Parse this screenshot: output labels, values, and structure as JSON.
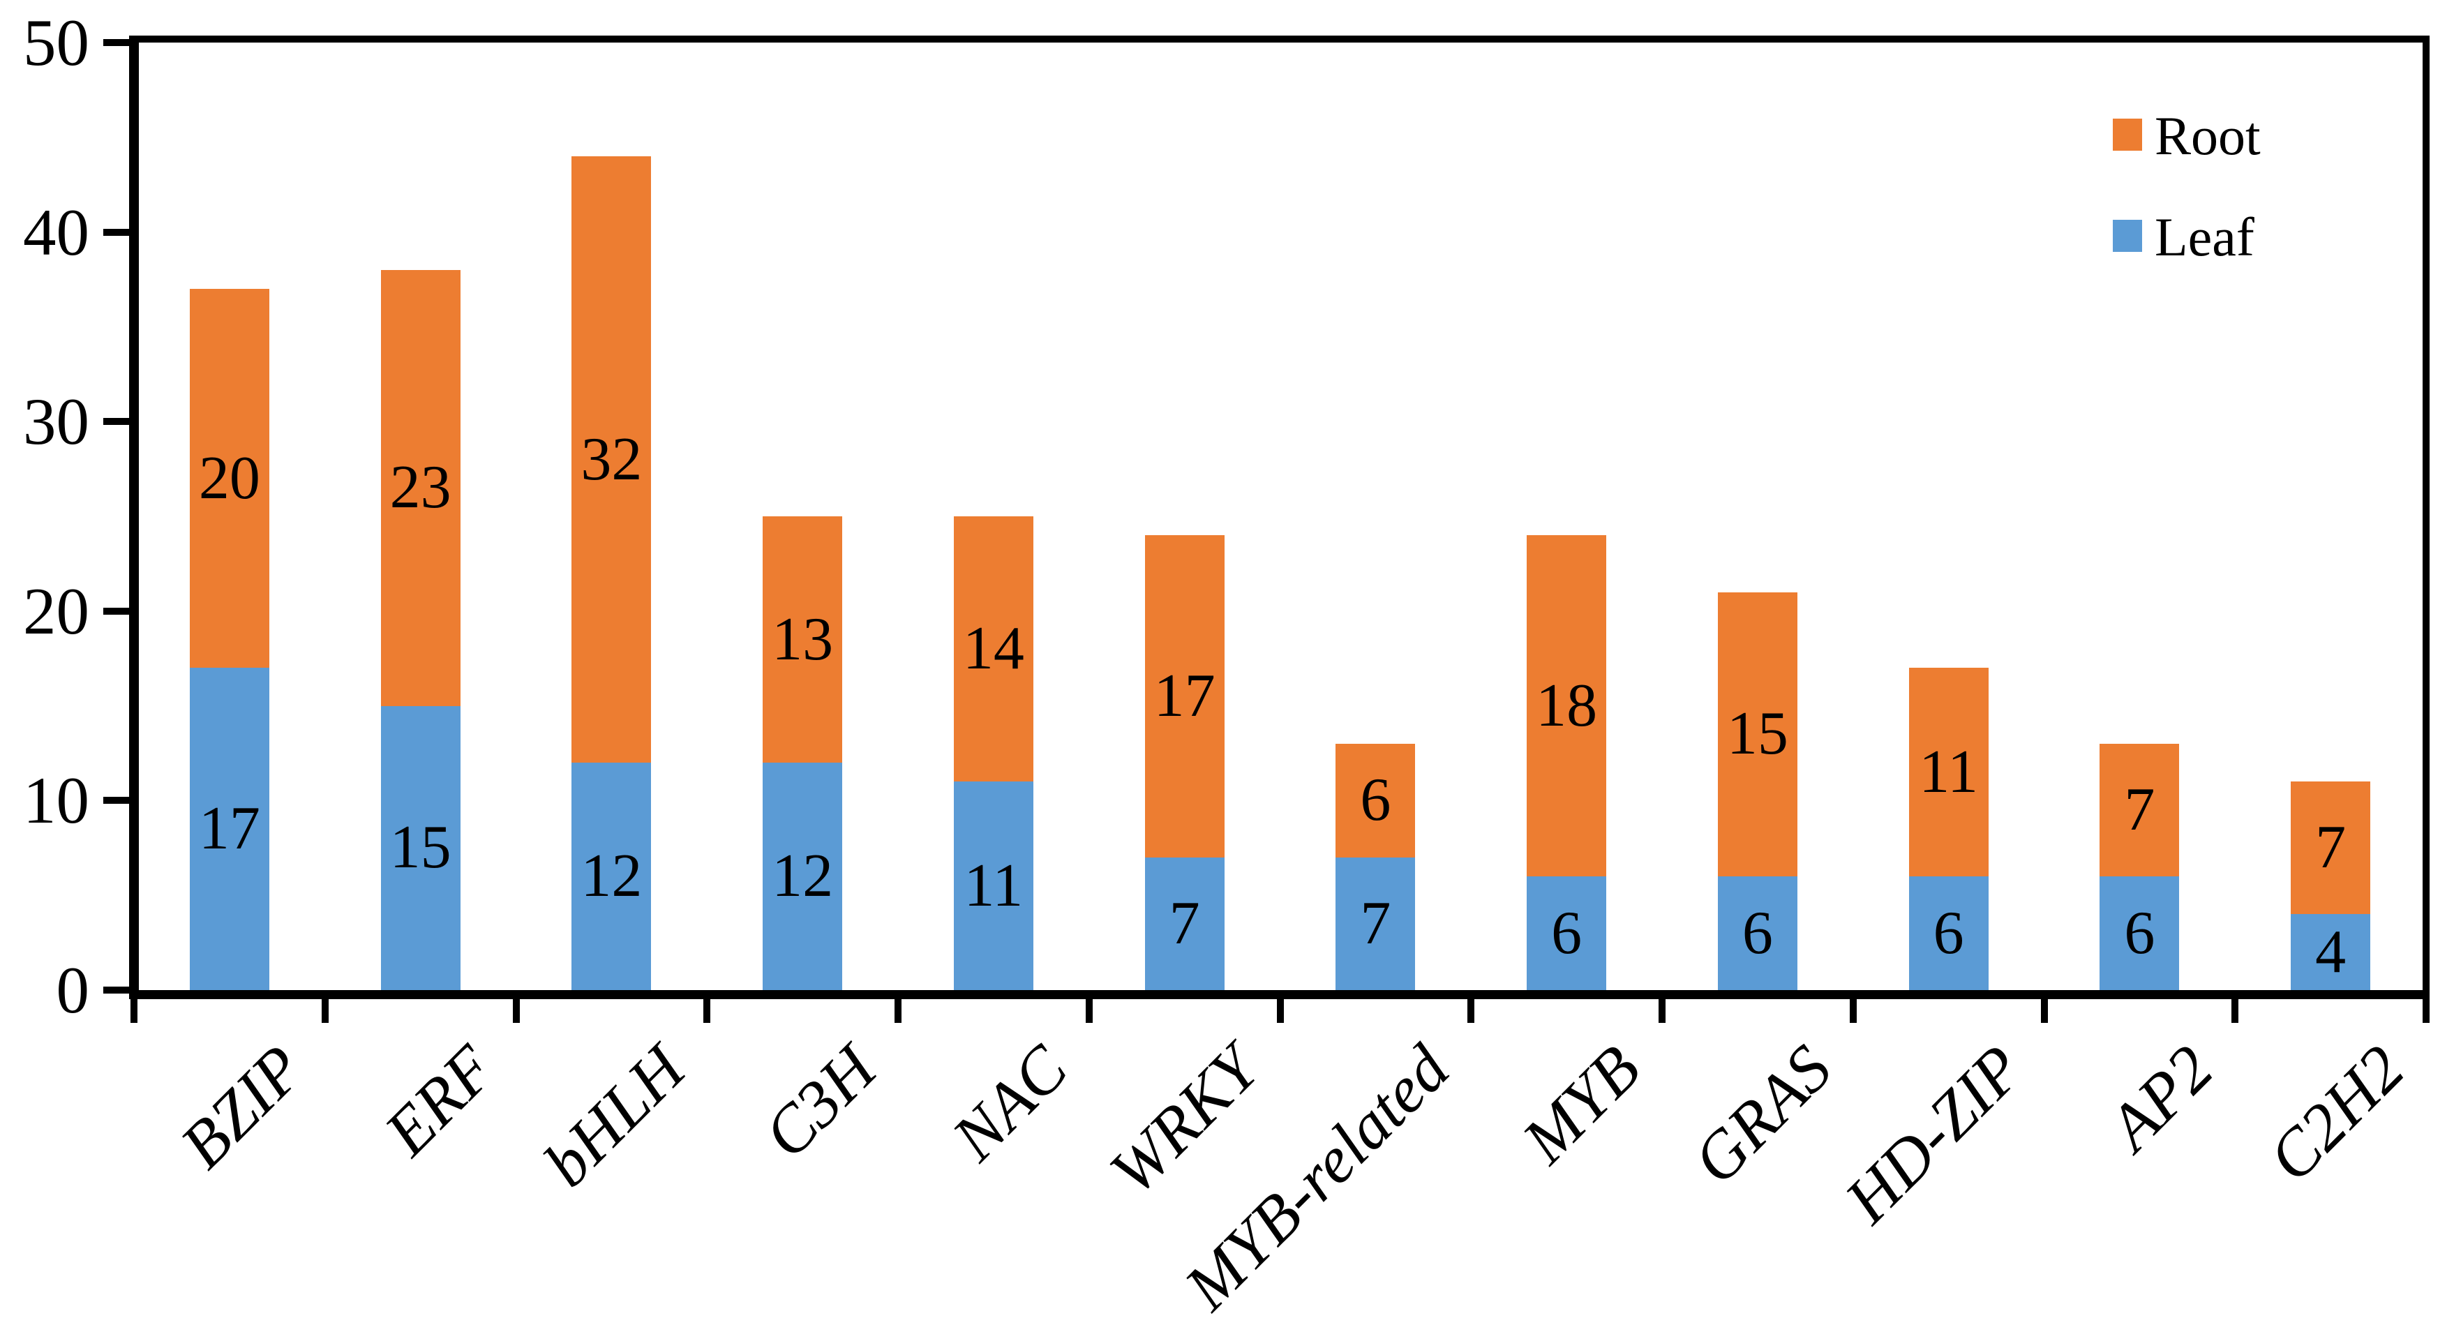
{
  "chart_data": {
    "type": "bar",
    "stacked": true,
    "title": "",
    "xlabel": "",
    "ylabel": "",
    "categories": [
      "BZIP",
      "ERF",
      "bHLH",
      "C3H",
      "NAC",
      "WRKY",
      "MYB-related",
      "MYB",
      "GRAS",
      "HD-ZIP",
      "AP2",
      "C2H2"
    ],
    "series": [
      {
        "name": "Leaf",
        "color": "#5B9BD5",
        "values": [
          17,
          15,
          12,
          12,
          11,
          7,
          7,
          6,
          6,
          6,
          6,
          4
        ]
      },
      {
        "name": "Root",
        "color": "#ED7D31",
        "values": [
          20,
          23,
          32,
          13,
          14,
          17,
          6,
          18,
          15,
          11,
          7,
          7
        ]
      }
    ],
    "value_labels_shown_inside_segments": true,
    "y_axis": {
      "min": 0,
      "max": 50,
      "tick_interval": 10,
      "tick_labels": [
        "0",
        "10",
        "20",
        "30",
        "40",
        "50"
      ]
    },
    "x_axis": {
      "tick_label_style": "italic, rotated 45deg"
    },
    "grid": false,
    "plot_border": true,
    "axis_color": "#000000",
    "text_color": "#000000",
    "legend": {
      "position": "top-right",
      "entries": [
        {
          "label": "Root",
          "color": "#ED7D31"
        },
        {
          "label": "Leaf",
          "color": "#5B9BD5"
        }
      ]
    }
  }
}
